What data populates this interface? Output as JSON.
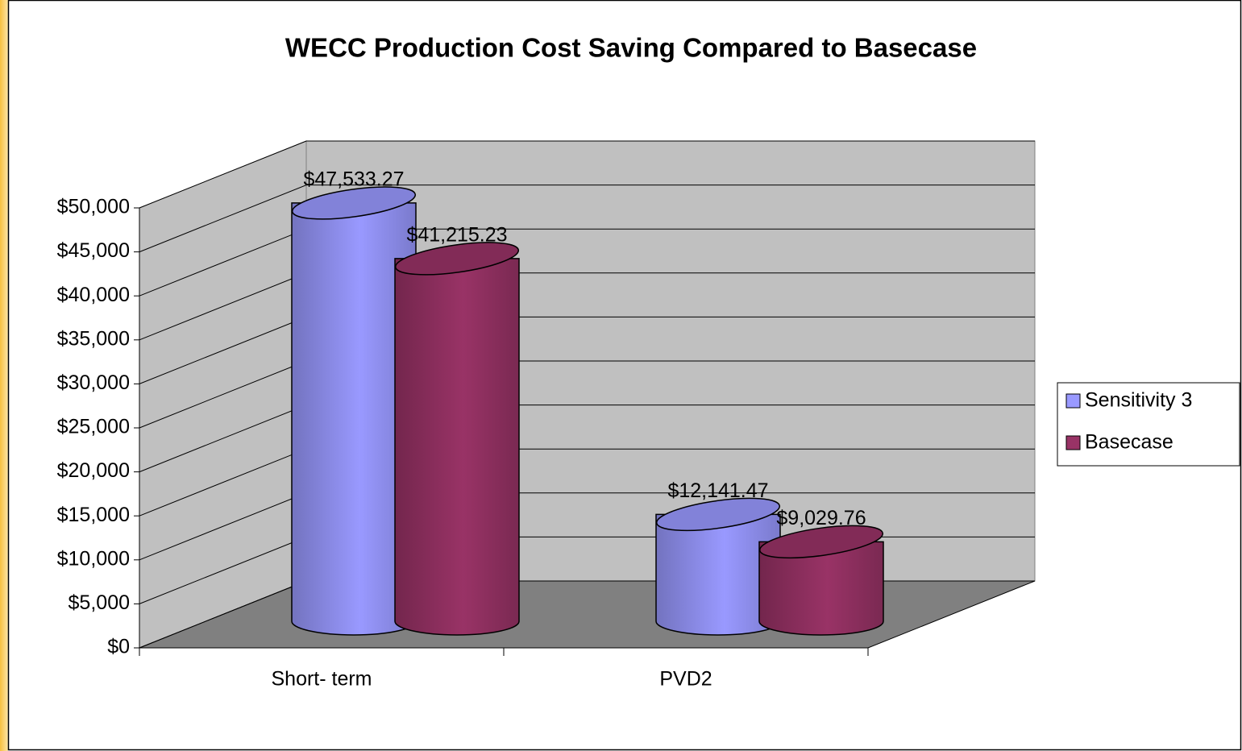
{
  "chart_data": {
    "type": "bar3d",
    "title": "WECC Production Cost Saving Compared to Basecase",
    "categories": [
      "Short- term",
      "PVD2"
    ],
    "series": [
      {
        "name": "Sensitivity 3",
        "color": "#9999ff",
        "values": [
          47533.27,
          12141.47
        ],
        "value_labels": [
          "$47,533.27",
          "$12,141.47"
        ]
      },
      {
        "name": "Basecase",
        "color": "#993366",
        "values": [
          41215.23,
          9029.76
        ],
        "value_labels": [
          "$41,215.23",
          "$9,029.76"
        ]
      }
    ],
    "ylim": [
      0,
      50000
    ],
    "yticks": [
      {
        "value": 0,
        "label": "$0"
      },
      {
        "value": 5000,
        "label": "$5,000"
      },
      {
        "value": 10000,
        "label": "$10,000"
      },
      {
        "value": 15000,
        "label": "$15,000"
      },
      {
        "value": 20000,
        "label": "$20,000"
      },
      {
        "value": 25000,
        "label": "$25,000"
      },
      {
        "value": 30000,
        "label": "$30,000"
      },
      {
        "value": 35000,
        "label": "$35,000"
      },
      {
        "value": 40000,
        "label": "$40,000"
      },
      {
        "value": 45000,
        "label": "$45,000"
      },
      {
        "value": 50000,
        "label": "$50,000"
      }
    ],
    "grid": true,
    "legend": "right"
  }
}
